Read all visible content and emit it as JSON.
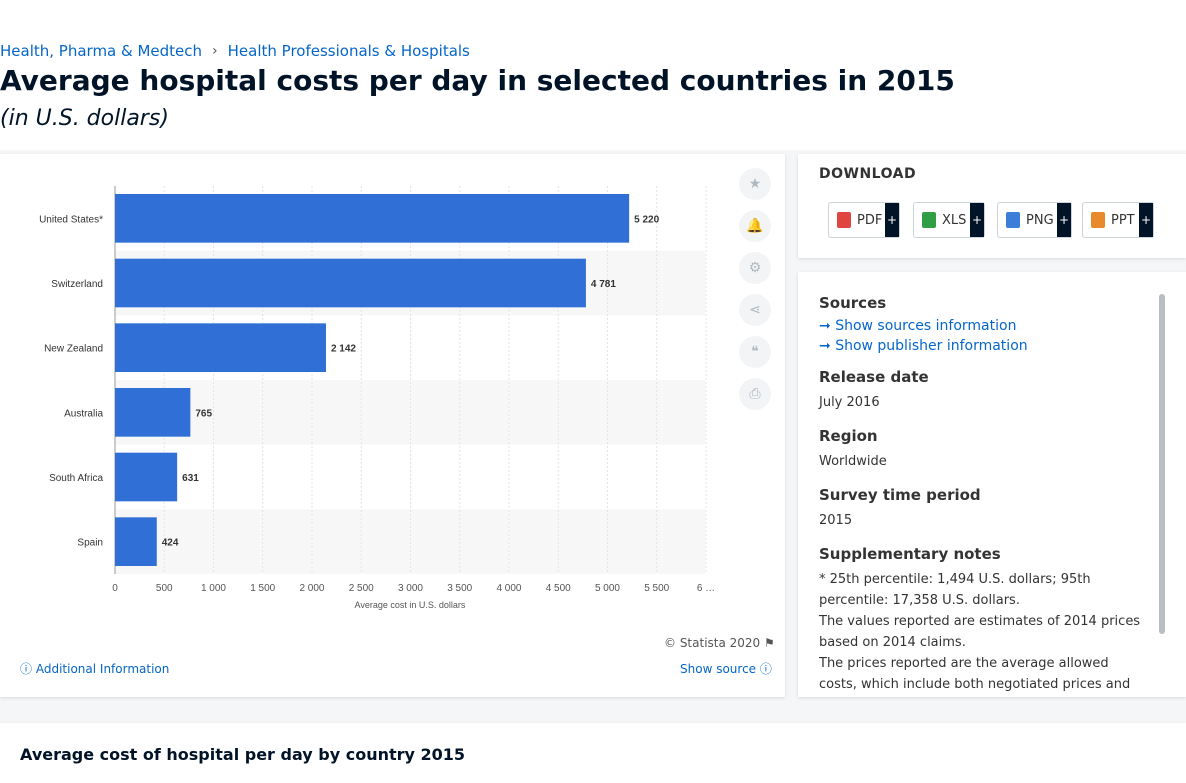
{
  "breadcrumb": [
    "Health, Pharma & Medtech",
    "Health Professionals & Hospitals"
  ],
  "title": "Average hospital costs per day in selected countries in 2015",
  "subtitle": "(in U.S. dollars)",
  "chart_data": {
    "type": "bar",
    "orientation": "horizontal",
    "categories": [
      "United States*",
      "Switzerland",
      "New Zealand",
      "Australia",
      "South Africa",
      "Spain"
    ],
    "values": [
      5220,
      4781,
      2142,
      765,
      631,
      424
    ],
    "value_labels": [
      "5 220",
      "4 781",
      "2 142",
      "765",
      "631",
      "424"
    ],
    "x_ticks": [
      "0",
      "500",
      "1 000",
      "1 500",
      "2 000",
      "2 500",
      "3 000",
      "3 500",
      "4 000",
      "4 500",
      "5 000",
      "5 500",
      "6 …"
    ],
    "xlabel": "Average cost in U.S. dollars",
    "xlim": [
      0,
      6000
    ],
    "grid": true,
    "bar_color": "#2f6fd6"
  },
  "tools": [
    {
      "icon": "star-icon",
      "glyph": "★"
    },
    {
      "icon": "bell-icon",
      "glyph": "🔔"
    },
    {
      "icon": "gear-icon",
      "glyph": "⚙"
    },
    {
      "icon": "share-icon",
      "glyph": "⋖"
    },
    {
      "icon": "quote-icon",
      "glyph": "❝"
    },
    {
      "icon": "print-icon",
      "glyph": "⎙"
    }
  ],
  "copyright": "© Statista 2020",
  "additional_info": "Additional Information",
  "show_source": "Show source",
  "download": {
    "title": "DOWNLOAD",
    "buttons": [
      {
        "label": "PDF",
        "color": "#e0443e"
      },
      {
        "label": "XLS",
        "color": "#2f9e44"
      },
      {
        "label": "PNG",
        "color": "#3b7dd8"
      },
      {
        "label": "PPT",
        "color": "#e8892c"
      }
    ],
    "plus": "+"
  },
  "info": {
    "sources_heading": "Sources",
    "show_sources": "Show sources information",
    "show_publisher": "Show publisher information",
    "release_heading": "Release date",
    "release_value": "July 2016",
    "region_heading": "Region",
    "region_value": "Worldwide",
    "survey_heading": "Survey time period",
    "survey_value": "2015",
    "notes_heading": "Supplementary notes",
    "note1": "* 25th percentile: 1,494 U.S. dollars; 95th percentile: 17,358 U.S. dollars.",
    "note2": "The values reported are estimates of 2014 prices based on 2014 claims.",
    "note3": "The prices reported are the average allowed costs, which include both negotiated prices and health"
  },
  "bottom_title": "Average cost of hospital per day by country 2015"
}
